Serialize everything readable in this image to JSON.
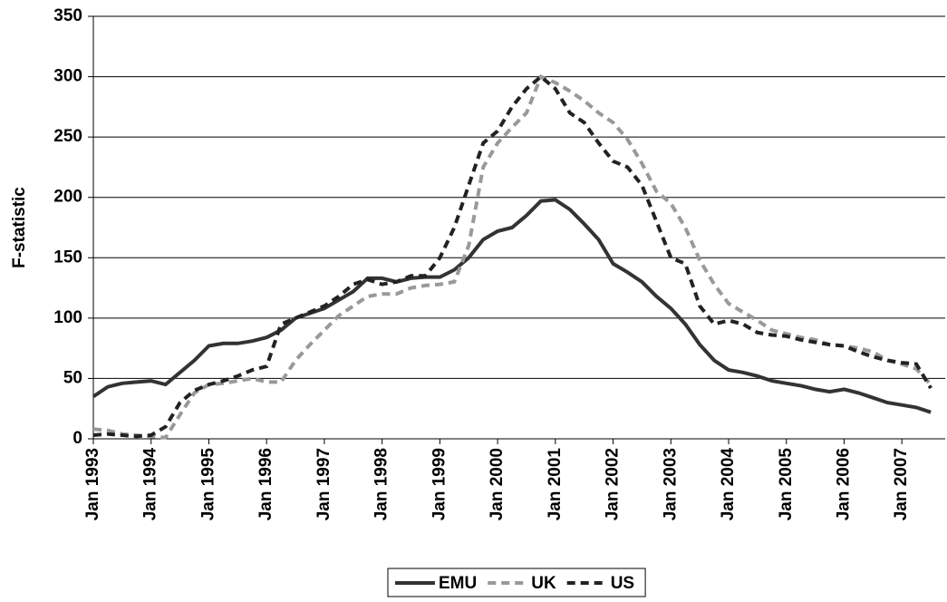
{
  "chart_data": {
    "type": "line",
    "y_label": "F-statistic",
    "x": [
      "1993-01",
      "1993-04",
      "1993-07",
      "1993-10",
      "1994-01",
      "1994-04",
      "1994-07",
      "1994-10",
      "1995-01",
      "1995-04",
      "1995-07",
      "1995-10",
      "1996-01",
      "1996-04",
      "1996-07",
      "1996-10",
      "1997-01",
      "1997-04",
      "1997-07",
      "1997-10",
      "1998-01",
      "1998-04",
      "1998-07",
      "1998-10",
      "1999-01",
      "1999-04",
      "1999-07",
      "1999-10",
      "2000-01",
      "2000-04",
      "2000-07",
      "2000-10",
      "2001-01",
      "2001-04",
      "2001-07",
      "2001-10",
      "2002-01",
      "2002-04",
      "2002-07",
      "2002-10",
      "2003-01",
      "2003-04",
      "2003-07",
      "2003-10",
      "2004-01",
      "2004-04",
      "2004-07",
      "2004-10",
      "2005-01",
      "2005-04",
      "2005-07",
      "2005-10",
      "2006-01",
      "2006-04",
      "2006-07",
      "2006-10",
      "2007-01",
      "2007-04",
      "2007-07"
    ],
    "series": [
      {
        "name": "EMU",
        "color": "#333333",
        "dash": "solid",
        "values": [
          35,
          43,
          46,
          47,
          48,
          45,
          55,
          65,
          77,
          79,
          79,
          81,
          84,
          90,
          100,
          104,
          108,
          115,
          122,
          133,
          133,
          130,
          133,
          134,
          134,
          140,
          150,
          165,
          172,
          175,
          185,
          197,
          198,
          190,
          178,
          165,
          145,
          138,
          130,
          118,
          108,
          95,
          78,
          65,
          57,
          55,
          52,
          48,
          46,
          44,
          41,
          39,
          41,
          38,
          34,
          30,
          28,
          26,
          22
        ]
      },
      {
        "name": "UK",
        "color": "#999999",
        "dash": "dashed",
        "values": [
          8,
          7,
          4,
          3,
          2,
          1,
          20,
          38,
          45,
          46,
          48,
          50,
          47,
          47,
          65,
          78,
          90,
          102,
          110,
          118,
          120,
          120,
          125,
          127,
          128,
          130,
          160,
          225,
          245,
          258,
          270,
          300,
          295,
          288,
          280,
          270,
          262,
          248,
          228,
          205,
          195,
          175,
          148,
          128,
          112,
          105,
          98,
          90,
          87,
          84,
          82,
          78,
          77,
          75,
          72,
          65,
          62,
          58,
          45
        ]
      },
      {
        "name": "US",
        "color": "#222222",
        "dash": "dashed",
        "values": [
          3,
          4,
          3,
          2,
          3,
          10,
          30,
          40,
          45,
          48,
          52,
          57,
          60,
          95,
          100,
          105,
          110,
          118,
          128,
          132,
          128,
          130,
          135,
          135,
          150,
          175,
          210,
          245,
          255,
          275,
          290,
          300,
          290,
          270,
          262,
          245,
          230,
          225,
          210,
          180,
          150,
          145,
          110,
          95,
          98,
          95,
          88,
          86,
          85,
          82,
          80,
          78,
          77,
          72,
          68,
          65,
          63,
          62,
          42
        ]
      }
    ],
    "xlim": [
      "1993-01",
      "2007-10"
    ],
    "xticks": [
      {
        "value": "1993-01",
        "label": "Jan 1993"
      },
      {
        "value": "1994-01",
        "label": "Jan 1994"
      },
      {
        "value": "1995-01",
        "label": "Jan 1995"
      },
      {
        "value": "1996-01",
        "label": "Jan 1996"
      },
      {
        "value": "1997-01",
        "label": "Jan 1997"
      },
      {
        "value": "1998-01",
        "label": "Jan 1998"
      },
      {
        "value": "1999-01",
        "label": "Jan 1999"
      },
      {
        "value": "2000-01",
        "label": "Jan 2000"
      },
      {
        "value": "2001-01",
        "label": "Jan 2001"
      },
      {
        "value": "2002-01",
        "label": "Jan 2002"
      },
      {
        "value": "2003-01",
        "label": "Jan 2003"
      },
      {
        "value": "2004-01",
        "label": "Jan 2004"
      },
      {
        "value": "2005-01",
        "label": "Jan 2005"
      },
      {
        "value": "2006-01",
        "label": "Jan 2006"
      },
      {
        "value": "2007-01",
        "label": "Jan 2007"
      }
    ],
    "ylim": [
      0,
      350
    ],
    "yticks": [
      0,
      50,
      100,
      150,
      200,
      250,
      300,
      350
    ],
    "grid": true,
    "legend": "bottom"
  }
}
